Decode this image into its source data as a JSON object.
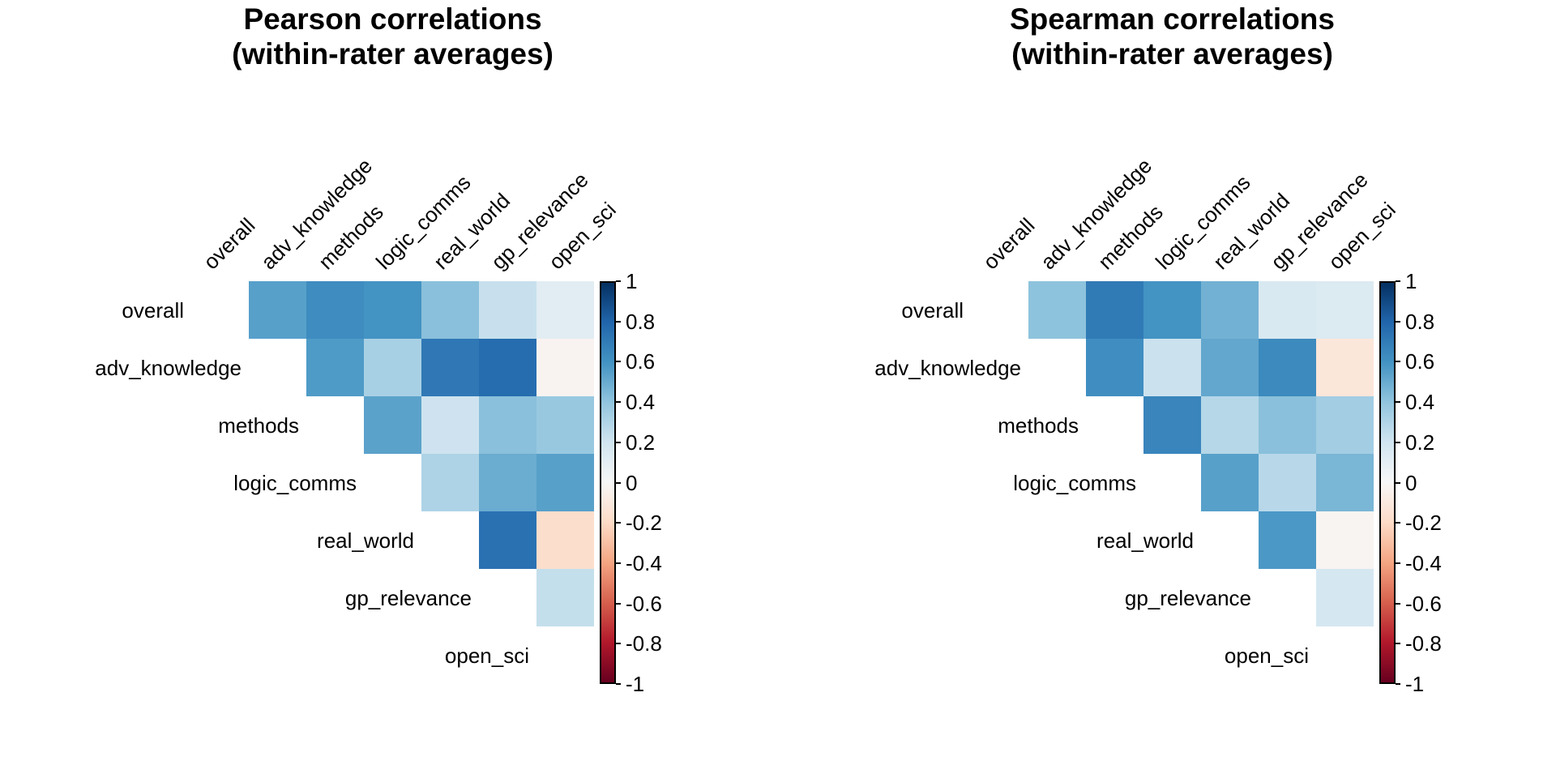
{
  "figure": {
    "background_color": "#ffffff",
    "text_color": "#000000"
  },
  "palette": {
    "name": "RdBu",
    "domain": [
      -1,
      1
    ],
    "anchors": [
      "#67001F",
      "#B2182B",
      "#D6604D",
      "#F4A582",
      "#FDDBC7",
      "#F7F7F7",
      "#D1E5F0",
      "#92C5DE",
      "#4393C3",
      "#2166AC",
      "#053061"
    ]
  },
  "colorbar": {
    "tick_labels": [
      "1",
      "0.8",
      "0.6",
      "0.4",
      "0.2",
      "0",
      "-0.2",
      "-0.4",
      "-0.6",
      "-0.8",
      "-1"
    ],
    "position": "right"
  },
  "chart_data": [
    {
      "type": "heatmap",
      "title_line1": "Pearson correlations",
      "title_line2": "(within-rater averages)",
      "triangle": "upper-without-diagonal",
      "value_range": [
        -1,
        1
      ],
      "grid": "off",
      "categories": [
        "overall",
        "adv_knowledge",
        "methods",
        "logic_comms",
        "real_world",
        "gp_relevance",
        "open_sci"
      ],
      "matrix": [
        [
          null,
          0.55,
          0.63,
          0.6,
          0.42,
          0.23,
          0.11
        ],
        [
          null,
          null,
          0.57,
          0.33,
          0.72,
          0.77,
          -0.03
        ],
        [
          null,
          null,
          null,
          0.54,
          0.21,
          0.42,
          0.38
        ],
        [
          null,
          null,
          null,
          null,
          0.31,
          0.5,
          0.55
        ],
        [
          null,
          null,
          null,
          null,
          null,
          0.75,
          -0.18
        ],
        [
          null,
          null,
          null,
          null,
          null,
          null,
          0.24
        ],
        [
          null,
          null,
          null,
          null,
          null,
          null,
          null
        ]
      ]
    },
    {
      "type": "heatmap",
      "title_line1": "Spearman correlations",
      "title_line2": "(within-rater averages)",
      "triangle": "upper-without-diagonal",
      "value_range": [
        -1,
        1
      ],
      "grid": "off",
      "categories": [
        "overall",
        "adv_knowledge",
        "methods",
        "logic_comms",
        "real_world",
        "gp_relevance",
        "open_sci"
      ],
      "matrix": [
        [
          null,
          0.41,
          0.71,
          0.6,
          0.48,
          0.16,
          0.14
        ],
        [
          null,
          null,
          0.62,
          0.22,
          0.52,
          0.64,
          -0.12
        ],
        [
          null,
          null,
          null,
          0.66,
          0.29,
          0.42,
          0.35
        ],
        [
          null,
          null,
          null,
          null,
          0.55,
          0.28,
          0.46
        ],
        [
          null,
          null,
          null,
          null,
          null,
          0.58,
          -0.02
        ],
        [
          null,
          null,
          null,
          null,
          null,
          null,
          0.18
        ],
        [
          null,
          null,
          null,
          null,
          null,
          null,
          null
        ]
      ]
    }
  ]
}
